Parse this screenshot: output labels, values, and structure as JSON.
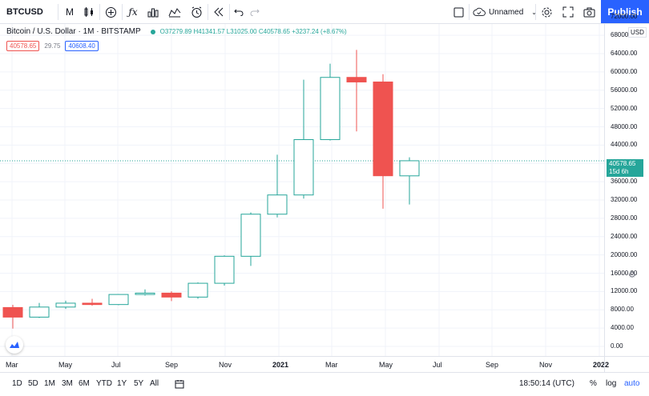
{
  "toolbar": {
    "symbol": "BTCUSD",
    "interval": "M",
    "chart_name": "Unnamed",
    "publish_label": "Publish"
  },
  "legend": {
    "title": "Bitcoin / U.S. Dollar · 1M · BITSTAMP",
    "ohlc": "O37279.89 H41341.57 L31025.00 C40578.65 +3237.24 (+8.67%)",
    "sell": "40578.65",
    "spread": "29.75",
    "buy": "40608.40"
  },
  "price_axis": {
    "currency": "USD",
    "current_price": "40578.65",
    "countdown": "15d 6h",
    "ticks": [
      "72000.00",
      "68000.00",
      "64000.00",
      "60000.00",
      "56000.00",
      "52000.00",
      "48000.00",
      "44000.00",
      "40000.00",
      "36000.00",
      "32000.00",
      "28000.00",
      "24000.00",
      "20000.00",
      "16000.00",
      "12000.00",
      "8000.00",
      "4000.00",
      "0.00"
    ]
  },
  "time_axis": {
    "labels": [
      "Mar",
      "May",
      "Jul",
      "Sep",
      "Nov",
      "2021",
      "Mar",
      "May",
      "Jul",
      "Sep",
      "Nov",
      "2022"
    ]
  },
  "bottom": {
    "ranges": [
      "1D",
      "5D",
      "1M",
      "3M",
      "6M",
      "YTD",
      "1Y",
      "5Y",
      "All"
    ],
    "time": "18:50:14 (UTC)",
    "percent": "%",
    "log": "log",
    "auto": "auto"
  },
  "colors": {
    "up": "#26a69a",
    "down": "#ef5350",
    "accent": "#2962ff"
  },
  "chart_data": {
    "type": "candlestick",
    "title": "Bitcoin / U.S. Dollar · 1M · BITSTAMP",
    "xlabel": "",
    "ylabel": "",
    "ylim": [
      0,
      72000
    ],
    "categories": [
      "2020-03",
      "2020-04",
      "2020-05",
      "2020-06",
      "2020-07",
      "2020-08",
      "2020-09",
      "2020-10",
      "2020-11",
      "2020-12",
      "2021-01",
      "2021-02",
      "2021-03",
      "2021-04",
      "2021-05",
      "2021-06"
    ],
    "series": [
      {
        "open": 8500,
        "high": 9100,
        "low": 3900,
        "close": 6400
      },
      {
        "open": 6400,
        "high": 9500,
        "low": 6200,
        "close": 8600
      },
      {
        "open": 8600,
        "high": 10000,
        "low": 8200,
        "close": 9450
      },
      {
        "open": 9450,
        "high": 10400,
        "low": 8900,
        "close": 9150
      },
      {
        "open": 9150,
        "high": 11400,
        "low": 9000,
        "close": 11350
      },
      {
        "open": 11350,
        "high": 12450,
        "low": 11100,
        "close": 11650
      },
      {
        "open": 11650,
        "high": 12050,
        "low": 9900,
        "close": 10780
      },
      {
        "open": 10780,
        "high": 14000,
        "low": 10400,
        "close": 13800
      },
      {
        "open": 13800,
        "high": 19900,
        "low": 13300,
        "close": 19700
      },
      {
        "open": 19700,
        "high": 29300,
        "low": 17600,
        "close": 28900
      },
      {
        "open": 28900,
        "high": 41900,
        "low": 28200,
        "close": 33100
      },
      {
        "open": 33100,
        "high": 58300,
        "low": 32300,
        "close": 45200
      },
      {
        "open": 45200,
        "high": 61800,
        "low": 45000,
        "close": 58800
      },
      {
        "open": 58800,
        "high": 64800,
        "low": 47000,
        "close": 57800
      },
      {
        "open": 57800,
        "high": 59500,
        "low": 30100,
        "close": 37300
      },
      {
        "open": 37280,
        "high": 41342,
        "low": 31025,
        "close": 40579
      }
    ]
  }
}
